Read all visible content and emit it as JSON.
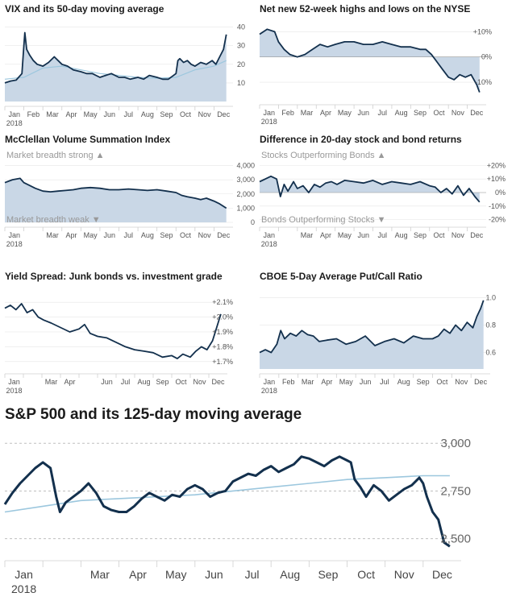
{
  "chart_data": [
    {
      "id": "vix",
      "type": "area",
      "title": "VIX and its 50-day moving average",
      "ylim": [
        0,
        45
      ],
      "yticks": [
        10,
        20,
        30,
        40
      ],
      "ytick_labels": [
        "10",
        "20",
        "30",
        "40"
      ],
      "xmonths": [
        "Jan",
        "Feb",
        "Mar",
        "Apr",
        "May",
        "Jun",
        "Jul",
        "Aug",
        "Sep",
        "Oct",
        "Nov",
        "Dec"
      ],
      "year_label": "2018",
      "series": [
        {
          "role": "main",
          "x": [
            0,
            0.3,
            0.6,
            0.9,
            1.0,
            1.05,
            1.15,
            1.3,
            1.5,
            1.7,
            2.0,
            2.3,
            2.6,
            3.0,
            3.3,
            3.6,
            4.0,
            4.3,
            4.6,
            5.0,
            5.3,
            5.6,
            6.0,
            6.3,
            6.6,
            7.0,
            7.3,
            7.6,
            8.0,
            8.3,
            8.6,
            9.0,
            9.1,
            9.2,
            9.4,
            9.6,
            9.8,
            10.0,
            10.3,
            10.6,
            10.9,
            11.1,
            11.3,
            11.5,
            11.65
          ],
          "y": [
            10,
            11,
            11.5,
            15,
            30,
            37,
            28,
            25,
            22,
            20,
            19,
            21,
            24,
            20,
            19,
            17,
            16,
            15,
            15,
            13,
            14,
            15,
            13,
            13,
            12,
            13,
            12,
            14,
            13,
            12,
            12,
            15,
            22,
            23,
            21,
            22,
            20,
            19,
            21,
            20,
            22,
            20,
            24,
            28,
            36
          ]
        },
        {
          "role": "ma",
          "x": [
            0,
            1,
            2,
            3,
            4,
            5,
            6,
            7,
            8,
            9,
            10,
            11,
            11.65
          ],
          "y": [
            12,
            13,
            18,
            19,
            17,
            15,
            14,
            13,
            12.5,
            13,
            17,
            19,
            22
          ]
        }
      ]
    },
    {
      "id": "highs_lows",
      "type": "area",
      "title": "Net new 52-week highs and lows on the NYSE",
      "ylim": [
        -17,
        13
      ],
      "yticks": [
        10,
        0,
        -10
      ],
      "ytick_labels": [
        "+10%",
        "0%",
        "-10%"
      ],
      "xmonths": [
        "Jan",
        "Feb",
        "Mar",
        "Apr",
        "May",
        "Jun",
        "Jul",
        "Aug",
        "Sep",
        "Oct",
        "Nov",
        "Dec"
      ],
      "year_label": "2018",
      "series": [
        {
          "role": "main",
          "x": [
            0,
            0.4,
            0.8,
            1.0,
            1.3,
            1.6,
            2.0,
            2.4,
            2.8,
            3.2,
            3.6,
            4.0,
            4.5,
            5.0,
            5.5,
            6.0,
            6.5,
            7.0,
            7.5,
            8.0,
            8.5,
            8.8,
            9.1,
            9.4,
            9.7,
            10.0,
            10.3,
            10.6,
            10.9,
            11.2,
            11.5,
            11.65
          ],
          "y": [
            9,
            11,
            10,
            6,
            3,
            1,
            0,
            1,
            3,
            5,
            4,
            5,
            6,
            6,
            5,
            5,
            6,
            5,
            4,
            4,
            3,
            3,
            1,
            -2,
            -5,
            -8,
            -9,
            -7,
            -8,
            -7,
            -11,
            -14
          ]
        }
      ]
    },
    {
      "id": "mcclellan",
      "type": "area",
      "title": "McClellan Volume Summation Index",
      "ylim": [
        0,
        4200
      ],
      "yticks": [
        4000,
        3000,
        2000,
        1000,
        0
      ],
      "ytick_labels": [
        "4,000",
        "3,000",
        "2,000",
        "1,000",
        "0"
      ],
      "annotations": {
        "top": "Market breadth strong ▲",
        "bottom": "Market breadth weak ▼"
      },
      "xmonths": [
        "Jan",
        "",
        "Mar",
        "Apr",
        "May",
        "Jun",
        "Jul",
        "Aug",
        "Sep",
        "Oct",
        "Nov",
        "Dec"
      ],
      "year_label": "2018",
      "series": [
        {
          "role": "main",
          "x": [
            0,
            0.4,
            0.8,
            1.0,
            1.3,
            1.6,
            2.0,
            2.4,
            2.8,
            3.2,
            3.6,
            4.0,
            4.5,
            5.0,
            5.5,
            6.0,
            6.5,
            7.0,
            7.5,
            8.0,
            8.5,
            9.0,
            9.3,
            9.6,
            10.0,
            10.3,
            10.6,
            11.0,
            11.3,
            11.65
          ],
          "y": [
            2800,
            3000,
            3100,
            2800,
            2600,
            2400,
            2200,
            2150,
            2200,
            2250,
            2300,
            2400,
            2450,
            2400,
            2300,
            2300,
            2350,
            2300,
            2250,
            2300,
            2200,
            2100,
            1900,
            1800,
            1700,
            1600,
            1700,
            1500,
            1300,
            1000
          ]
        }
      ]
    },
    {
      "id": "stock_bond",
      "type": "area",
      "title": "Difference in 20-day stock and bond returns",
      "ylim": [
        -22,
        22
      ],
      "yticks": [
        20,
        10,
        0,
        -10,
        -20
      ],
      "ytick_labels": [
        "+20%",
        "+10%",
        "0%",
        "-10%",
        "-20%"
      ],
      "annotations": {
        "top": "Stocks Outperforming Bonds ▲",
        "bottom": "Bonds Outperforming Stocks ▼"
      },
      "xmonths": [
        "Jan",
        "",
        "Mar",
        "Apr",
        "May",
        "Jun",
        "Jul",
        "Aug",
        "Sep",
        "Oct",
        "Nov",
        "Dec"
      ],
      "year_label": "2018",
      "series": [
        {
          "role": "main",
          "x": [
            0,
            0.3,
            0.6,
            0.9,
            1.1,
            1.3,
            1.5,
            1.8,
            2.0,
            2.3,
            2.6,
            2.9,
            3.2,
            3.5,
            3.8,
            4.1,
            4.5,
            5.0,
            5.5,
            6.0,
            6.5,
            7.0,
            7.5,
            8.0,
            8.5,
            9.0,
            9.3,
            9.6,
            9.9,
            10.2,
            10.5,
            10.8,
            11.1,
            11.4,
            11.65
          ],
          "y": [
            8,
            10,
            12,
            10,
            -3,
            6,
            1,
            8,
            3,
            5,
            0,
            6,
            4,
            7,
            8,
            6,
            9,
            8,
            7,
            9,
            6,
            8,
            7,
            6,
            8,
            5,
            4,
            0,
            3,
            -1,
            5,
            -2,
            3,
            -3,
            -7
          ]
        }
      ]
    },
    {
      "id": "junk_spread",
      "type": "line",
      "title": "Yield Spread: Junk bonds vs. investment grade",
      "ylim": [
        1.65,
        2.15
      ],
      "yticks": [
        2.1,
        2.0,
        1.9,
        1.8,
        1.7
      ],
      "ytick_labels": [
        "+2.1%",
        "+2.0%",
        "+1.9%",
        "+1.8%",
        "+1.7%"
      ],
      "xmonths": [
        "Jan",
        "",
        "Mar",
        "Apr",
        "",
        "Jun",
        "Jul",
        "Aug",
        "Sep",
        "Oct",
        "Nov",
        "Dec"
      ],
      "year_label": "2018",
      "series": [
        {
          "role": "main",
          "x": [
            0,
            0.3,
            0.6,
            0.9,
            1.2,
            1.5,
            1.8,
            2.1,
            2.5,
            3.0,
            3.5,
            4.0,
            4.3,
            4.6,
            5.0,
            5.5,
            6.0,
            6.5,
            7.0,
            7.5,
            8.0,
            8.5,
            9.0,
            9.3,
            9.6,
            10.0,
            10.3,
            10.6,
            10.9,
            11.2,
            11.4,
            11.65
          ],
          "y": [
            2.06,
            2.08,
            2.05,
            2.09,
            2.03,
            2.05,
            2.0,
            1.98,
            1.96,
            1.93,
            1.9,
            1.92,
            1.95,
            1.89,
            1.87,
            1.86,
            1.83,
            1.8,
            1.78,
            1.77,
            1.76,
            1.73,
            1.74,
            1.72,
            1.75,
            1.73,
            1.77,
            1.8,
            1.78,
            1.84,
            1.92,
            2.02
          ]
        }
      ]
    },
    {
      "id": "put_call",
      "type": "area",
      "title": "CBOE 5-Day Average Put/Call Ratio",
      "ylim": [
        0.48,
        1.02
      ],
      "yticks": [
        1.0,
        0.8,
        0.6
      ],
      "ytick_labels": [
        "1.0",
        "0.8",
        "0.6"
      ],
      "xmonths": [
        "Jan",
        "Feb",
        "Mar",
        "Apr",
        "May",
        "Jun",
        "Jul",
        "Aug",
        "Sep",
        "Oct",
        "Nov",
        "Dec"
      ],
      "year_label": "2018",
      "series": [
        {
          "role": "main",
          "x": [
            0,
            0.3,
            0.6,
            0.9,
            1.1,
            1.3,
            1.6,
            1.9,
            2.2,
            2.5,
            2.8,
            3.1,
            3.5,
            4.0,
            4.5,
            5.0,
            5.5,
            6.0,
            6.5,
            7.0,
            7.5,
            8.0,
            8.5,
            9.0,
            9.3,
            9.6,
            9.9,
            10.2,
            10.5,
            10.8,
            11.1,
            11.3,
            11.5,
            11.65
          ],
          "y": [
            0.6,
            0.62,
            0.6,
            0.66,
            0.76,
            0.7,
            0.74,
            0.72,
            0.76,
            0.73,
            0.72,
            0.68,
            0.69,
            0.7,
            0.66,
            0.68,
            0.72,
            0.65,
            0.68,
            0.7,
            0.67,
            0.72,
            0.7,
            0.7,
            0.72,
            0.77,
            0.74,
            0.8,
            0.76,
            0.82,
            0.78,
            0.86,
            0.92,
            0.98
          ]
        }
      ]
    },
    {
      "id": "sp500",
      "type": "line",
      "title": "S&P 500 and its 125-day moving average",
      "ylim": [
        2410,
        3060
      ],
      "yticks": [
        3000,
        2750,
        2500
      ],
      "ytick_labels": [
        "3,000",
        "2,750",
        "2,500"
      ],
      "xmonths": [
        "Jan",
        "",
        "Mar",
        "Apr",
        "May",
        "Jun",
        "Jul",
        "Aug",
        "Sep",
        "Oct",
        "Nov",
        "Dec"
      ],
      "year_label": "2018",
      "series": [
        {
          "role": "main",
          "x": [
            0,
            0.2,
            0.4,
            0.6,
            0.8,
            1.0,
            1.2,
            1.35,
            1.45,
            1.6,
            1.8,
            2.0,
            2.2,
            2.4,
            2.6,
            2.8,
            3.0,
            3.2,
            3.4,
            3.6,
            3.8,
            4.0,
            4.2,
            4.4,
            4.6,
            4.8,
            5.0,
            5.2,
            5.4,
            5.6,
            5.8,
            6.0,
            6.2,
            6.4,
            6.6,
            6.8,
            7.0,
            7.2,
            7.4,
            7.6,
            7.8,
            8.0,
            8.2,
            8.4,
            8.6,
            8.8,
            9.0,
            9.1,
            9.2,
            9.35,
            9.5,
            9.7,
            9.9,
            10.1,
            10.3,
            10.5,
            10.7,
            10.9,
            11.0,
            11.1,
            11.25,
            11.4,
            11.55,
            11.7
          ],
          "y": [
            2680,
            2740,
            2790,
            2830,
            2870,
            2900,
            2870,
            2720,
            2640,
            2690,
            2720,
            2750,
            2790,
            2740,
            2670,
            2650,
            2640,
            2640,
            2670,
            2710,
            2740,
            2720,
            2700,
            2730,
            2720,
            2760,
            2780,
            2760,
            2720,
            2740,
            2750,
            2800,
            2820,
            2840,
            2830,
            2860,
            2880,
            2850,
            2870,
            2890,
            2930,
            2920,
            2900,
            2880,
            2910,
            2930,
            2910,
            2900,
            2810,
            2770,
            2720,
            2780,
            2750,
            2700,
            2730,
            2760,
            2780,
            2820,
            2790,
            2720,
            2640,
            2600,
            2480,
            2460
          ]
        },
        {
          "role": "ma",
          "x": [
            0,
            1,
            2,
            3,
            4,
            5,
            6,
            7,
            8,
            9,
            10,
            11,
            11.7
          ],
          "y": [
            2640,
            2670,
            2700,
            2710,
            2720,
            2730,
            2750,
            2770,
            2790,
            2810,
            2820,
            2830,
            2830
          ]
        }
      ]
    }
  ]
}
